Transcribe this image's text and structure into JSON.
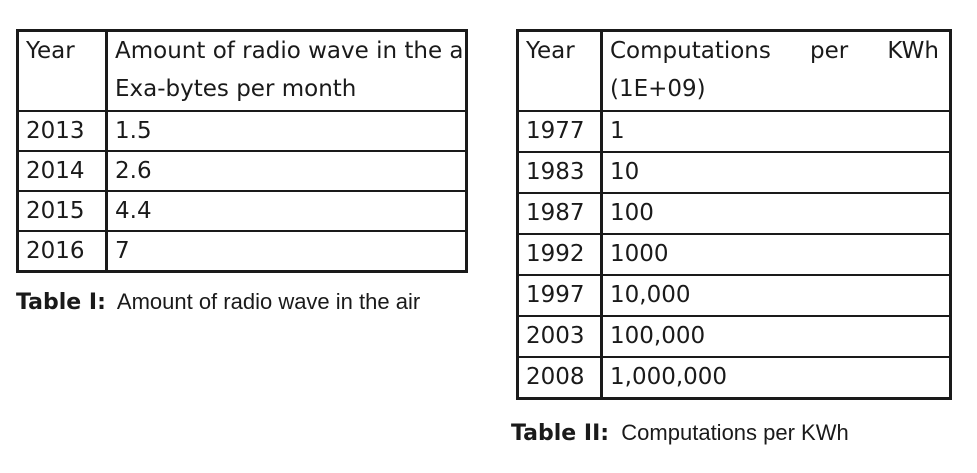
{
  "table1": {
    "header_year": "Year",
    "header_value_line1": "Amount of radio wave in the air",
    "header_value_line2": "Exa-bytes per month",
    "rows": [
      {
        "year": "2013",
        "value": "1.5"
      },
      {
        "year": "2014",
        "value": "2.6"
      },
      {
        "year": "2015",
        "value": "4.4"
      },
      {
        "year": "2016",
        "value": "7"
      }
    ],
    "caption_label": "Table I:",
    "caption_text": "Amount of radio wave in the air"
  },
  "table2": {
    "header_year": "Year",
    "header_value_words": [
      "Computations",
      "per",
      "KWh"
    ],
    "header_value_line2": "(1E+09)",
    "rows": [
      {
        "year": "1977",
        "value": "1"
      },
      {
        "year": "1983",
        "value": "10"
      },
      {
        "year": "1987",
        "value": "100"
      },
      {
        "year": "1992",
        "value": "1000"
      },
      {
        "year": "1997",
        "value": "10,000"
      },
      {
        "year": "2003",
        "value": "100,000"
      },
      {
        "year": "2008",
        "value": "1,000,000"
      }
    ],
    "caption_label": "Table II:",
    "caption_text": "Computations per KWh"
  }
}
